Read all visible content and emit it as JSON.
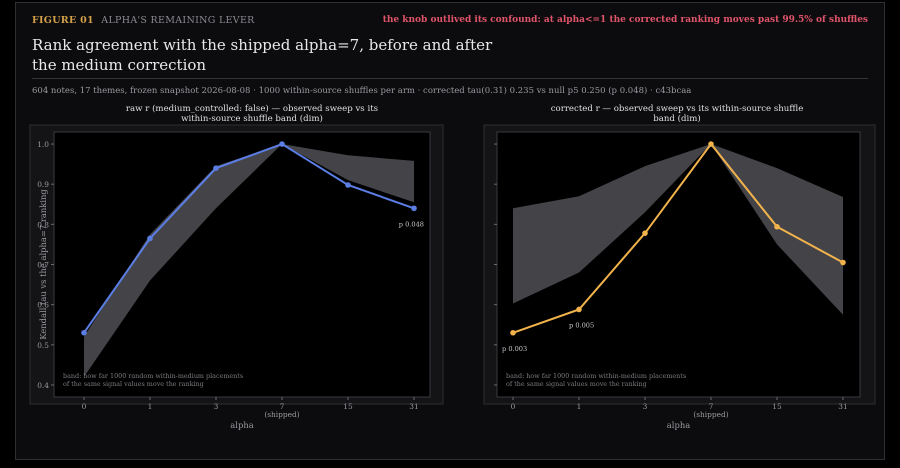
{
  "figure": {
    "number": "FIGURE 01",
    "subtitle": "ALPHA'S REMAINING LEVER",
    "headline": "the knob outlived its confound: at alpha<=1 the corrected ranking moves past 99.5% of shuffles",
    "title": "Rank agreement with the shipped alpha=7, before and after the medium correction",
    "meta": "604 notes, 17 themes, frozen snapshot 2026-08-08  ·  1000 within-source shuffles per arm  ·  corrected tau(0.31) 0.235 vs null p5 0.250 (p 0.048)  ·  c43bcaa"
  },
  "colors": {
    "raw": "#5b7ee5",
    "corrected": "#f2b34c",
    "band": "#4a4a50",
    "grid_text": "#9a9aa0"
  },
  "chart_data": [
    {
      "type": "line",
      "title_lines": [
        "raw r (medium_controlled: false) — observed sweep vs its",
        "within-source shuffle band (dim)"
      ],
      "categories": [
        "0",
        "1",
        "3",
        "7",
        "15",
        "31"
      ],
      "category_sublabels": [
        "",
        "",
        "",
        "(shipped)",
        "",
        ""
      ],
      "xlabel": "alpha",
      "ylabel": "Kendall tau vs the alpha=7 ranking",
      "ylim": [
        0.37,
        1.03
      ],
      "yticks": [
        "0.4",
        "0.5",
        "0.6",
        "0.7",
        "0.8",
        "0.9",
        "1.0"
      ],
      "series": [
        {
          "values": [
            0.53,
            0.765,
            0.94,
            1.0,
            0.898,
            0.84
          ]
        }
      ],
      "band": {
        "lower": [
          0.42,
          0.66,
          0.84,
          1.0,
          0.91,
          0.855
        ],
        "upper": [
          0.52,
          0.775,
          0.945,
          1.0,
          0.972,
          0.958
        ]
      },
      "annotations": [
        {
          "text": "p 0.048",
          "index": 5
        }
      ],
      "note_lines": [
        "band: how far 1000 random within-medium placements",
        "of the same signal values move the ranking"
      ]
    },
    {
      "type": "line",
      "title_lines": [
        "corrected r — observed sweep vs its within-source shuffle",
        "band (dim)"
      ],
      "categories": [
        "0",
        "1",
        "3",
        "7",
        "15",
        "31"
      ],
      "category_sublabels": [
        "",
        "",
        "",
        "(shipped)",
        "",
        ""
      ],
      "xlabel": "alpha",
      "ylabel": "",
      "ylim": [
        0.37,
        1.03
      ],
      "yticks": [],
      "series": [
        {
          "values": [
            0.53,
            0.588,
            0.778,
            1.0,
            0.794,
            0.705
          ]
        }
      ],
      "band": {
        "lower": [
          0.603,
          0.68,
          0.83,
          1.0,
          0.75,
          0.575
        ],
        "upper": [
          0.84,
          0.87,
          0.945,
          1.0,
          0.94,
          0.868
        ]
      },
      "annotations": [
        {
          "text": "p 0.003",
          "index": 0
        },
        {
          "text": "p 0.005",
          "index": 1
        }
      ],
      "note_lines": [
        "band: how far 1000 random within-medium placements",
        "of the same signal values move the ranking"
      ]
    }
  ]
}
